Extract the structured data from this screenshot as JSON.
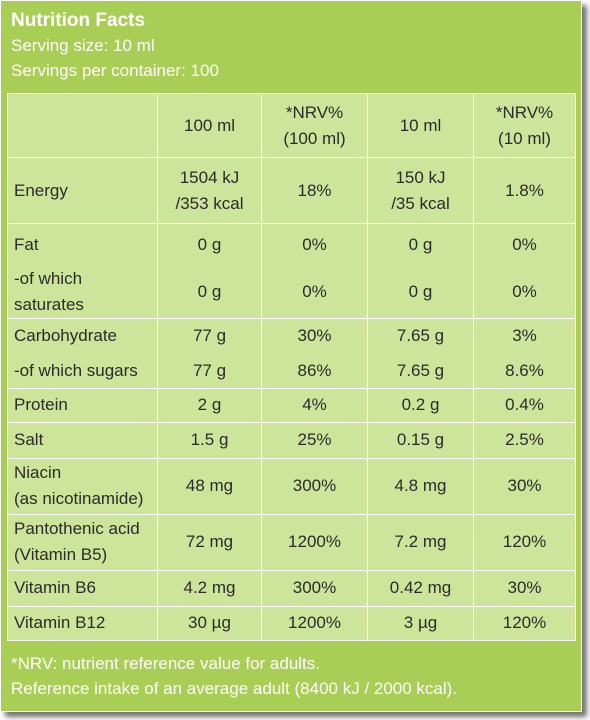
{
  "title": "Nutrition Facts",
  "serving_size": "Serving size: 10 ml",
  "servings_per_container": "Servings per container: 100",
  "columns": {
    "c1": "100 ml",
    "c2_line1": "*NRV%",
    "c2_line2": "(100 ml)",
    "c3": "10 ml",
    "c4_line1": "*NRV%",
    "c4_line2": "(10 ml)"
  },
  "rows": [
    {
      "label": [
        "Energy"
      ],
      "v100": [
        "1504 kJ",
        "/353 kcal"
      ],
      "nrv100": "18%",
      "v10": [
        "150 kJ",
        "/35 kcal"
      ],
      "nrv10": "1.8%"
    },
    {
      "label": [
        "Fat"
      ],
      "v100": [
        "0 g"
      ],
      "nrv100": "0%",
      "v10": [
        "0 g"
      ],
      "nrv10": "0%"
    },
    {
      "label": [
        "-of which",
        "saturates"
      ],
      "v100": [
        "0 g"
      ],
      "nrv100": "0%",
      "v10": [
        "0 g"
      ],
      "nrv10": "0%"
    },
    {
      "label": [
        "Carbohydrate"
      ],
      "v100": [
        "77 g"
      ],
      "nrv100": "30%",
      "v10": [
        "7.65 g"
      ],
      "nrv10": "3%"
    },
    {
      "label": [
        "-of which sugars"
      ],
      "v100": [
        "77 g"
      ],
      "nrv100": "86%",
      "v10": [
        "7.65 g"
      ],
      "nrv10": "8.6%"
    },
    {
      "label": [
        "Protein"
      ],
      "v100": [
        "2 g"
      ],
      "nrv100": "4%",
      "v10": [
        "0.2 g"
      ],
      "nrv10": "0.4%"
    },
    {
      "label": [
        "Salt"
      ],
      "v100": [
        "1.5 g"
      ],
      "nrv100": "25%",
      "v10": [
        "0.15 g"
      ],
      "nrv10": "2.5%"
    },
    {
      "label": [
        "Niacin",
        "(as nicotinamide)"
      ],
      "v100": [
        "48 mg"
      ],
      "nrv100": "300%",
      "v10": [
        "4.8 mg"
      ],
      "nrv10": "30%"
    },
    {
      "label": [
        "Pantothenic acid",
        "(Vitamin B5)"
      ],
      "v100": [
        "72 mg"
      ],
      "nrv100": "1200%",
      "v10": [
        "7.2 mg"
      ],
      "nrv10": "120%"
    },
    {
      "label": [
        "Vitamin B6"
      ],
      "v100": [
        "4.2 mg"
      ],
      "nrv100": "300%",
      "v10": [
        "0.42 mg"
      ],
      "nrv10": "30%"
    },
    {
      "label": [
        "Vitamin B12"
      ],
      "v100": [
        "30 µg"
      ],
      "nrv100": "1200%",
      "v10": [
        "3 µg"
      ],
      "nrv10": "120%"
    }
  ],
  "footer": {
    "note1": "*NRV: nutrient reference value for adults.",
    "note2": "Reference intake of an average adult (8400 kJ / 2000 kcal)."
  },
  "colors": {
    "panel": "#a9ce55",
    "cell": "#cde59a",
    "text_light": "#ffffff",
    "text_dark": "#2b2b2b"
  }
}
